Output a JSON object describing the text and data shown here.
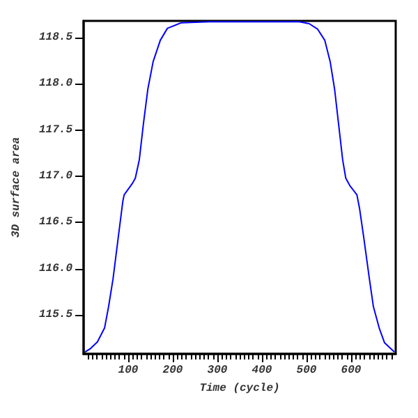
{
  "chart_data": {
    "type": "line",
    "xlabel": "Time (cycle)",
    "ylabel": "3D surface area",
    "x": [
      3,
      16,
      31,
      47,
      56,
      66,
      78,
      88,
      91,
      109,
      116,
      125,
      134,
      144,
      156,
      172,
      188,
      219,
      281,
      400,
      484,
      506,
      525,
      541,
      553,
      563,
      572,
      581,
      588,
      597,
      613,
      619,
      628,
      641,
      650,
      663,
      675,
      697
    ],
    "series": [
      {
        "color": "#0000ff",
        "values": [
          115.1,
          115.14,
          115.21,
          115.36,
          115.59,
          115.89,
          116.35,
          116.73,
          116.8,
          116.92,
          116.98,
          117.18,
          117.56,
          117.94,
          118.24,
          118.47,
          118.6,
          118.66,
          118.67,
          118.67,
          118.67,
          118.65,
          118.59,
          118.47,
          118.24,
          117.94,
          117.56,
          117.18,
          116.98,
          116.9,
          116.8,
          116.65,
          116.35,
          115.89,
          115.59,
          115.36,
          115.2,
          115.1
        ]
      }
    ],
    "xlim": [
      0,
      700
    ],
    "xticks": [
      100,
      200,
      300,
      400,
      500,
      600
    ],
    "ylim": [
      115.08,
      118.68
    ],
    "yticks": [
      115.5,
      {
        "value": 116,
        "label": "116.0"
      },
      116.5,
      {
        "value": 117,
        "label": "117.0"
      },
      117.5,
      {
        "value": 118,
        "label": "118.0"
      },
      118.5
    ],
    "grid": false,
    "marker": "none",
    "line_style": "solid"
  }
}
